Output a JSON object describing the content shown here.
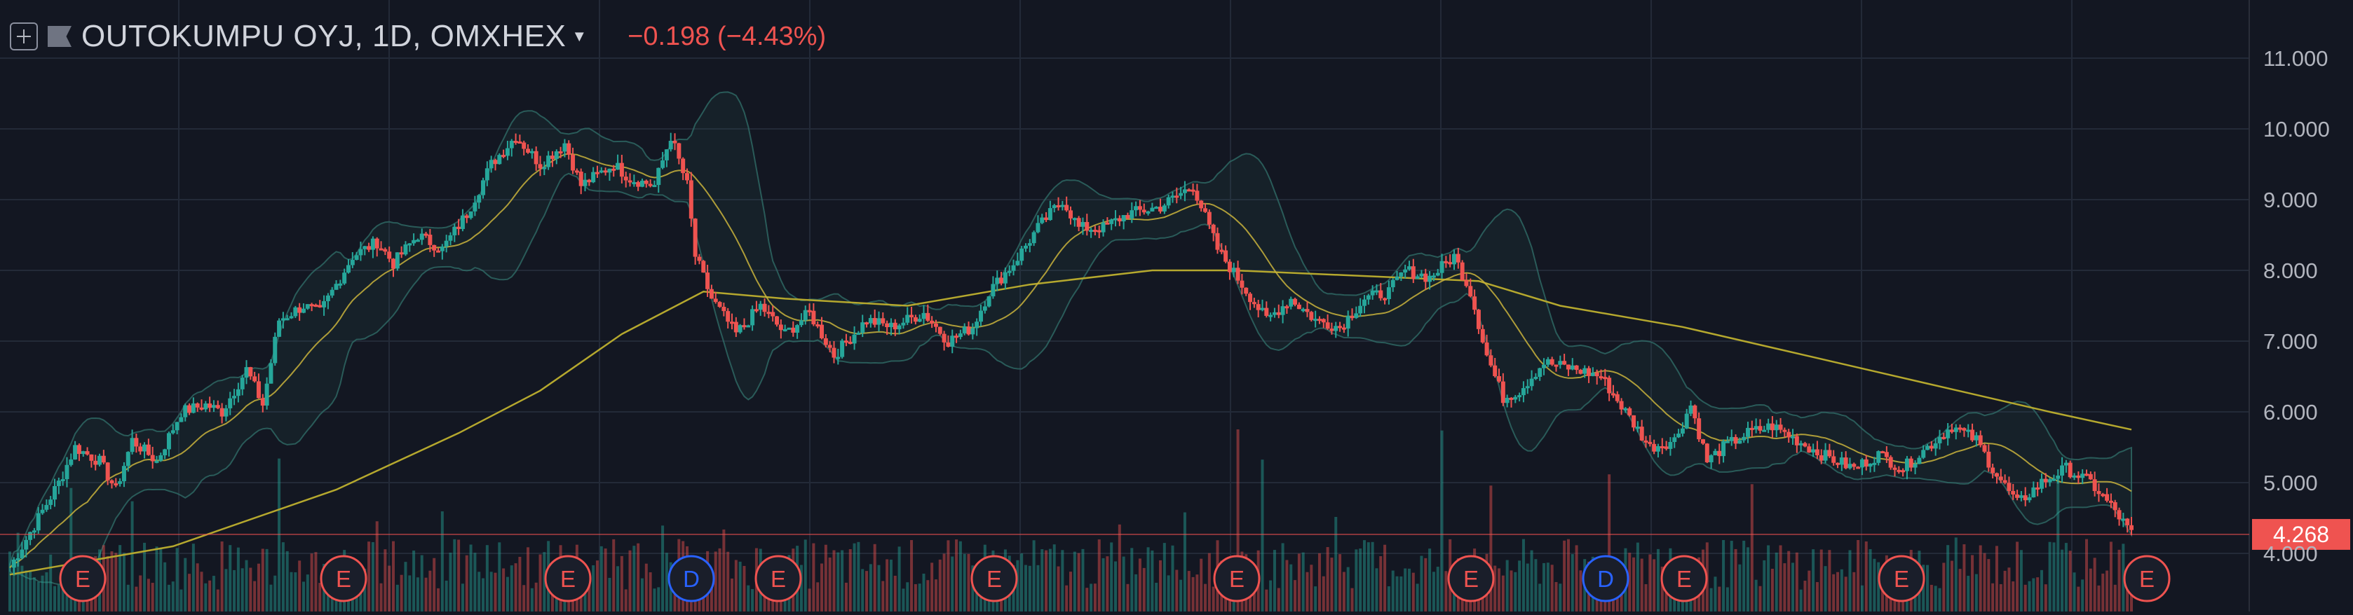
{
  "header": {
    "symbol": "OUTOKUMPU OYJ, 1D, OMXHEX",
    "change": "−0.198 (−4.43%)",
    "add_icon": "plus-square-icon",
    "flag_icon": "flag-icon",
    "caret_icon": "caret-down-icon"
  },
  "colors": {
    "background": "#131722",
    "grid": "#232a38",
    "up": "#26a69a",
    "down": "#ef5350",
    "axis_text": "#b2b5be",
    "ma_short": "#c9b33c",
    "ma_long": "#b5a82e",
    "bands": "#2f6b66",
    "price_label_bg": "#ef5350",
    "marker": "#4a90c8"
  },
  "price_axis": {
    "ticks": [
      "11.000",
      "10.000",
      "9.000",
      "8.000",
      "7.000",
      "6.000",
      "5.000",
      "4.000"
    ],
    "last_price": "4.268"
  },
  "chart_data": {
    "type": "candlestick",
    "title": "OUTOKUMPU OYJ, 1D, OMXHEX",
    "ylim": [
      3.6,
      11.5
    ],
    "y_ticks": [
      11.0,
      10.0,
      9.0,
      8.0,
      7.0,
      6.0,
      5.0,
      4.0
    ],
    "last_price": 4.268,
    "change": -0.198,
    "change_pct": -4.43,
    "grid": true,
    "price_path": [
      [
        0,
        3.8
      ],
      [
        8,
        4.6
      ],
      [
        12,
        5.0
      ],
      [
        16,
        5.5
      ],
      [
        22,
        5.3
      ],
      [
        26,
        4.9
      ],
      [
        30,
        5.6
      ],
      [
        36,
        5.3
      ],
      [
        42,
        6.0
      ],
      [
        48,
        6.1
      ],
      [
        52,
        6.0
      ],
      [
        58,
        6.6
      ],
      [
        62,
        6.1
      ],
      [
        66,
        7.3
      ],
      [
        72,
        7.5
      ],
      [
        76,
        7.4
      ],
      [
        80,
        7.8
      ],
      [
        84,
        8.2
      ],
      [
        90,
        8.4
      ],
      [
        94,
        8.1
      ],
      [
        100,
        8.5
      ],
      [
        106,
        8.3
      ],
      [
        112,
        8.8
      ],
      [
        118,
        9.5
      ],
      [
        124,
        9.9
      ],
      [
        130,
        9.5
      ],
      [
        136,
        9.8
      ],
      [
        140,
        9.2
      ],
      [
        148,
        9.5
      ],
      [
        152,
        9.3
      ],
      [
        158,
        9.2
      ],
      [
        162,
        9.9
      ],
      [
        166,
        9.2
      ],
      [
        168,
        8.2
      ],
      [
        172,
        7.6
      ],
      [
        178,
        7.1
      ],
      [
        184,
        7.5
      ],
      [
        190,
        7.1
      ],
      [
        196,
        7.4
      ],
      [
        202,
        6.8
      ],
      [
        210,
        7.3
      ],
      [
        216,
        7.2
      ],
      [
        224,
        7.4
      ],
      [
        230,
        7.0
      ],
      [
        236,
        7.2
      ],
      [
        240,
        7.7
      ],
      [
        246,
        8.1
      ],
      [
        252,
        8.6
      ],
      [
        258,
        9.0
      ],
      [
        262,
        8.6
      ],
      [
        268,
        8.6
      ],
      [
        274,
        8.8
      ],
      [
        282,
        8.9
      ],
      [
        290,
        9.2
      ],
      [
        296,
        8.3
      ],
      [
        302,
        7.8
      ],
      [
        308,
        7.3
      ],
      [
        314,
        7.6
      ],
      [
        320,
        7.3
      ],
      [
        326,
        7.2
      ],
      [
        332,
        7.6
      ],
      [
        338,
        7.7
      ],
      [
        342,
        8.0
      ],
      [
        348,
        7.9
      ],
      [
        354,
        8.2
      ],
      [
        358,
        7.7
      ],
      [
        362,
        6.8
      ],
      [
        366,
        6.2
      ],
      [
        370,
        6.3
      ],
      [
        376,
        6.7
      ],
      [
        384,
        6.6
      ],
      [
        390,
        6.5
      ],
      [
        396,
        6.0
      ],
      [
        402,
        5.5
      ],
      [
        408,
        5.6
      ],
      [
        412,
        6.1
      ],
      [
        416,
        5.3
      ],
      [
        420,
        5.5
      ],
      [
        426,
        5.7
      ],
      [
        432,
        5.8
      ],
      [
        438,
        5.6
      ],
      [
        444,
        5.4
      ],
      [
        452,
        5.2
      ],
      [
        458,
        5.4
      ],
      [
        464,
        5.2
      ],
      [
        470,
        5.5
      ],
      [
        476,
        5.8
      ],
      [
        482,
        5.6
      ],
      [
        486,
        5.2
      ],
      [
        492,
        4.7
      ],
      [
        498,
        5.0
      ],
      [
        504,
        5.2
      ],
      [
        510,
        5.0
      ],
      [
        516,
        4.6
      ],
      [
        520,
        4.27
      ]
    ],
    "moving_average_long": [
      [
        0,
        3.7
      ],
      [
        40,
        4.1
      ],
      [
        80,
        4.9
      ],
      [
        110,
        5.7
      ],
      [
        130,
        6.3
      ],
      [
        150,
        7.1
      ],
      [
        170,
        7.7
      ],
      [
        190,
        7.6
      ],
      [
        220,
        7.5
      ],
      [
        250,
        7.8
      ],
      [
        280,
        8.0
      ],
      [
        300,
        8.0
      ],
      [
        340,
        7.9
      ],
      [
        360,
        7.85
      ],
      [
        380,
        7.5
      ],
      [
        410,
        7.2
      ],
      [
        440,
        6.8
      ],
      [
        470,
        6.4
      ],
      [
        500,
        6.0
      ],
      [
        520,
        5.75
      ]
    ],
    "earnings_markers": [
      "E",
      "E",
      "E",
      "D",
      "E",
      "E",
      "E",
      "E",
      "D",
      "E",
      "E",
      "E"
    ],
    "volume_max": 5
  }
}
